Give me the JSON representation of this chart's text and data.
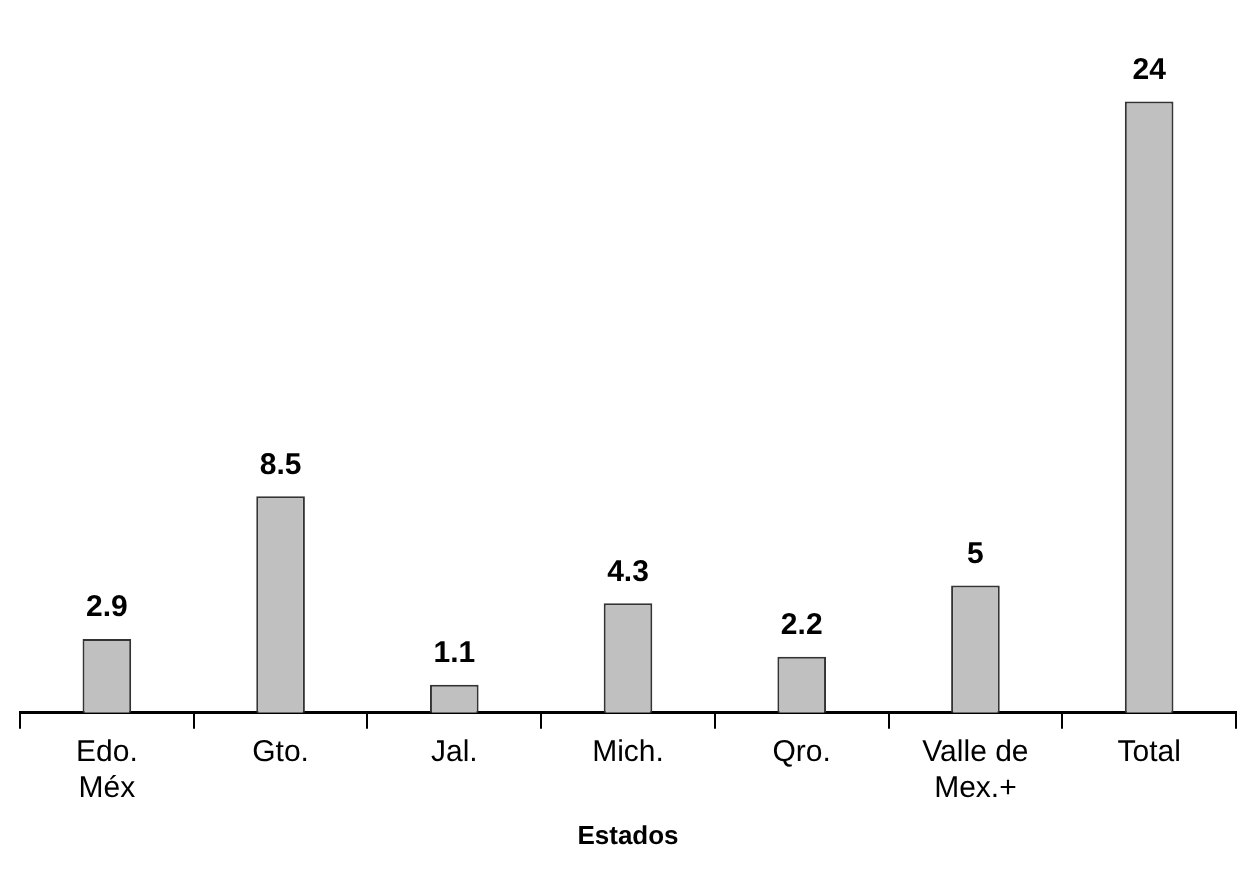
{
  "chart_data": {
    "type": "bar",
    "xlabel": "Estados",
    "categories": [
      "Edo.\nMéx",
      "Gto.",
      "Jal.",
      "Mich.",
      "Qro.",
      "Valle de\nMex.+",
      "Total"
    ],
    "values": [
      2.9,
      8.5,
      1.1,
      4.3,
      2.2,
      5,
      24
    ],
    "color": "#c0c0c0",
    "data_labels": true,
    "grid": false,
    "legend": false
  }
}
